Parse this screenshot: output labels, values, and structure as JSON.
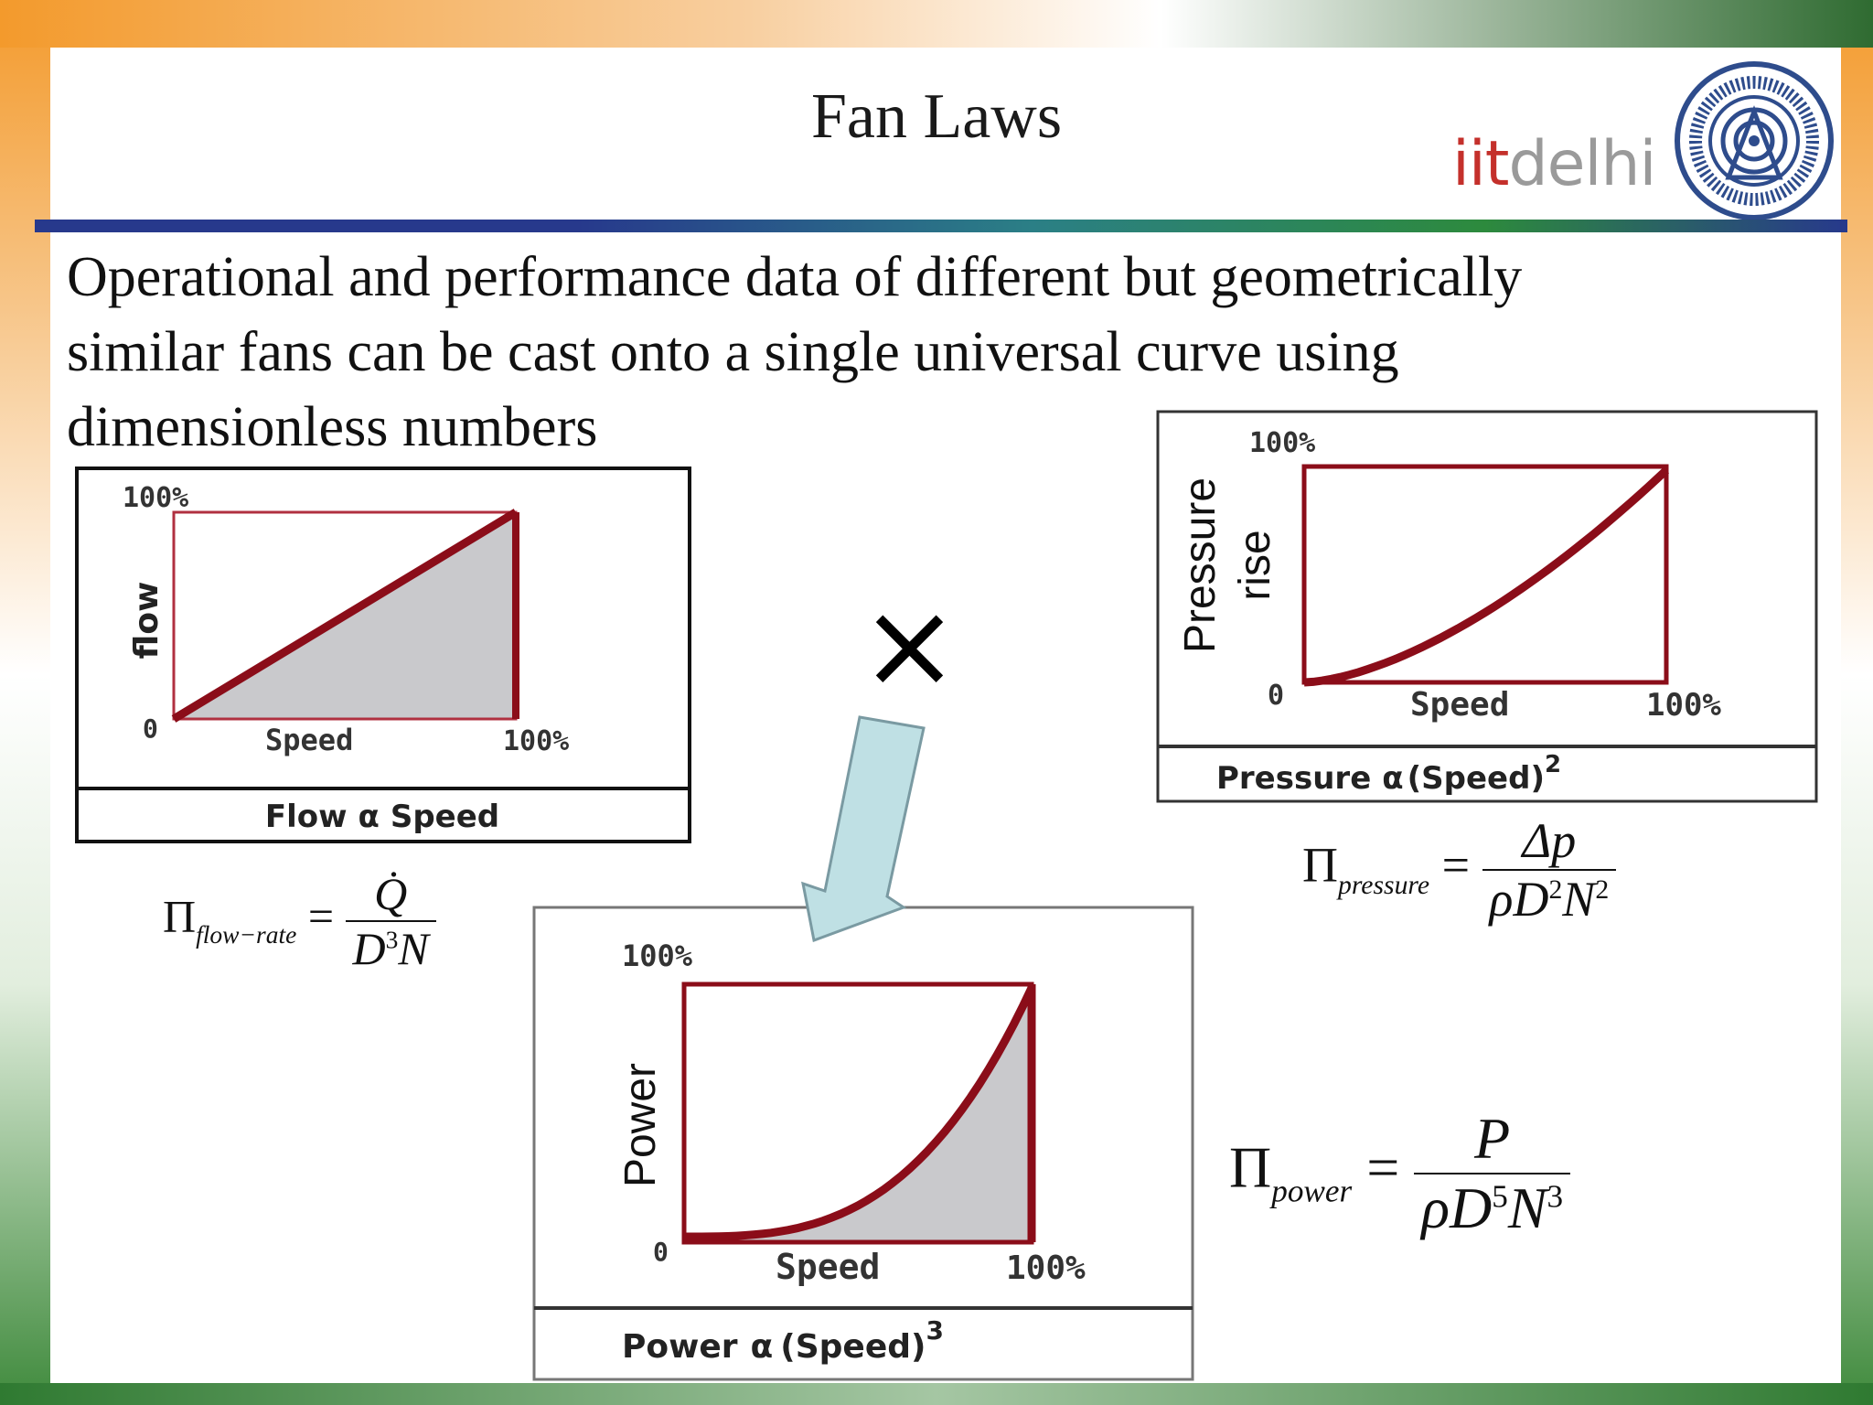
{
  "slide": {
    "title": "Fan Laws",
    "logo": {
      "part1": "iit",
      "part2": "delhi",
      "seal_icon": "iit-delhi-seal-icon"
    },
    "intro_lines": [
      "Operational and performance data of different but geometrically",
      "similar fans can be cast onto a single universal curve using",
      "dimensionless numbers"
    ],
    "multiply_sign": "×"
  },
  "charts": {
    "flow": {
      "y_axis_label": "flow",
      "y_max_label": "100%",
      "origin_label": "0",
      "x_axis_label": "Speed",
      "x_max_label": "100%",
      "caption_left": "Flow",
      "caption_symbol": "α",
      "caption_right": "Speed"
    },
    "pressure": {
      "y_axis_label_line1": "Pressure",
      "y_axis_label_line2": "rise",
      "y_max_label": "100%",
      "origin_label": "0",
      "x_axis_label": "Speed",
      "x_max_label": "100%",
      "caption_left": "Pressure",
      "caption_symbol": "α",
      "caption_right": "(Speed)",
      "caption_exp": "2"
    },
    "power": {
      "y_axis_label": "Power",
      "y_max_label": "100%",
      "origin_label": "0",
      "x_axis_label": "Speed",
      "x_max_label": "100%",
      "caption_left": "Power",
      "caption_symbol": "α",
      "caption_right": "(Speed)",
      "caption_exp": "3"
    }
  },
  "formulas": {
    "flow_rate": {
      "symbol": "Π",
      "subscript": "flow−rate",
      "equals": "=",
      "numerator": "Q̇",
      "den_base": "D",
      "den_exp": "3",
      "den_tail": "N"
    },
    "pressure": {
      "symbol": "Π",
      "subscript": "pressure",
      "equals": "=",
      "numerator": "Δp",
      "den_rho": "ρD",
      "den_exp1": "2",
      "den_n": "N",
      "den_exp2": "2"
    },
    "power": {
      "symbol": "Π",
      "subscript": "power",
      "equals": "=",
      "numerator": "P",
      "den_rho": "ρD",
      "den_exp1": "5",
      "den_n": "N",
      "den_exp2": "3"
    }
  },
  "colors": {
    "curve": "#8b0d19",
    "fill": "#c9c9cc",
    "rule_start": "#27398c",
    "rule_mid": "#2d8a3d"
  }
}
